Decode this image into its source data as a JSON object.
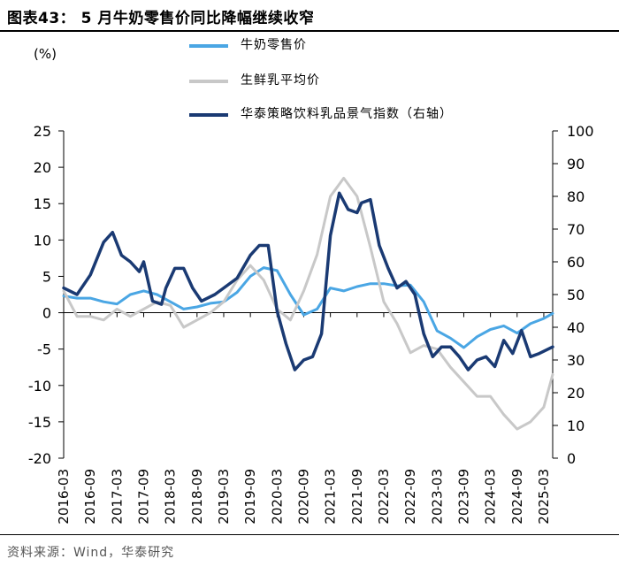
{
  "header": {
    "title": "图表43：  5 月牛奶零售价同比降幅继续收窄"
  },
  "footer": {
    "source": "资料来源：Wind，华泰研究"
  },
  "chart_data": {
    "type": "line",
    "unit_label": "(%)",
    "left_axis": {
      "min": -20,
      "max": 25,
      "ticks": [
        25,
        20,
        15,
        10,
        5,
        0,
        -5,
        -10,
        -15,
        -20
      ]
    },
    "right_axis": {
      "min": 0,
      "max": 100,
      "ticks": [
        100,
        90,
        80,
        70,
        60,
        50,
        40,
        30,
        20,
        10,
        0
      ]
    },
    "x_tick_labels": [
      "2016-03",
      "2016-09",
      "2017-03",
      "2017-09",
      "2018-03",
      "2018-09",
      "2019-03",
      "2019-09",
      "2020-03",
      "2020-09",
      "2021-03",
      "2021-09",
      "2022-03",
      "2022-09",
      "2023-03",
      "2023-09",
      "2024-03",
      "2024-09",
      "2025-03"
    ],
    "x_start": "2016-03",
    "x_end": "2025-05",
    "series": [
      {
        "name": "牛奶零售价",
        "axis": "left",
        "color": "#4aa6e4",
        "width": 3,
        "points": [
          [
            "2016-03",
            2.3
          ],
          [
            "2016-06",
            2.0
          ],
          [
            "2016-09",
            2.0
          ],
          [
            "2016-12",
            1.5
          ],
          [
            "2017-03",
            1.2
          ],
          [
            "2017-06",
            2.5
          ],
          [
            "2017-09",
            3.0
          ],
          [
            "2017-12",
            2.5
          ],
          [
            "2018-03",
            1.5
          ],
          [
            "2018-06",
            0.5
          ],
          [
            "2018-09",
            0.8
          ],
          [
            "2018-12",
            1.3
          ],
          [
            "2019-03",
            1.5
          ],
          [
            "2019-06",
            2.8
          ],
          [
            "2019-09",
            5.0
          ],
          [
            "2019-12",
            6.2
          ],
          [
            "2020-03",
            5.8
          ],
          [
            "2020-06",
            2.5
          ],
          [
            "2020-09",
            -0.3
          ],
          [
            "2020-12",
            0.5
          ],
          [
            "2021-03",
            3.4
          ],
          [
            "2021-06",
            3.0
          ],
          [
            "2021-09",
            3.6
          ],
          [
            "2021-12",
            4.0
          ],
          [
            "2022-03",
            4.0
          ],
          [
            "2022-06",
            3.7
          ],
          [
            "2022-09",
            3.8
          ],
          [
            "2022-12",
            1.5
          ],
          [
            "2023-03",
            -2.5
          ],
          [
            "2023-06",
            -3.5
          ],
          [
            "2023-09",
            -4.8
          ],
          [
            "2023-12",
            -3.3
          ],
          [
            "2024-03",
            -2.3
          ],
          [
            "2024-06",
            -1.8
          ],
          [
            "2024-09",
            -2.8
          ],
          [
            "2024-12",
            -1.5
          ],
          [
            "2025-03",
            -0.8
          ],
          [
            "2025-05",
            -0.1
          ]
        ]
      },
      {
        "name": "生鲜乳平均价",
        "axis": "left",
        "color": "#c8c8c8",
        "width": 3,
        "points": [
          [
            "2016-03",
            3.0
          ],
          [
            "2016-06",
            -0.5
          ],
          [
            "2016-09",
            -0.5
          ],
          [
            "2016-12",
            -1.0
          ],
          [
            "2017-03",
            0.5
          ],
          [
            "2017-06",
            -0.5
          ],
          [
            "2017-09",
            0.5
          ],
          [
            "2017-12",
            1.5
          ],
          [
            "2018-03",
            1.0
          ],
          [
            "2018-06",
            -2.0
          ],
          [
            "2018-09",
            -1.0
          ],
          [
            "2018-12",
            0.0
          ],
          [
            "2019-03",
            1.5
          ],
          [
            "2019-06",
            4.5
          ],
          [
            "2019-09",
            6.5
          ],
          [
            "2019-12",
            4.5
          ],
          [
            "2020-03",
            0.5
          ],
          [
            "2020-06",
            -1.0
          ],
          [
            "2020-09",
            3.0
          ],
          [
            "2020-12",
            8.0
          ],
          [
            "2021-03",
            16.0
          ],
          [
            "2021-06",
            18.5
          ],
          [
            "2021-09",
            16.0
          ],
          [
            "2021-12",
            9.0
          ],
          [
            "2022-03",
            1.5
          ],
          [
            "2022-06",
            -1.5
          ],
          [
            "2022-09",
            -5.5
          ],
          [
            "2022-12",
            -4.5
          ],
          [
            "2023-03",
            -5.0
          ],
          [
            "2023-06",
            -7.5
          ],
          [
            "2023-09",
            -9.5
          ],
          [
            "2023-12",
            -11.5
          ],
          [
            "2024-03",
            -11.5
          ],
          [
            "2024-06",
            -14.0
          ],
          [
            "2024-09",
            -16.0
          ],
          [
            "2024-12",
            -15.0
          ],
          [
            "2025-03",
            -13.0
          ],
          [
            "2025-05",
            -8.5
          ]
        ]
      },
      {
        "name": "华泰策略饮料乳品景气指数（右轴）",
        "axis": "right",
        "color": "#1a3a73",
        "width": 3.5,
        "points": [
          [
            "2016-03",
            52
          ],
          [
            "2016-06",
            50
          ],
          [
            "2016-09",
            56
          ],
          [
            "2016-12",
            66
          ],
          [
            "2017-02",
            69
          ],
          [
            "2017-04",
            62
          ],
          [
            "2017-06",
            60
          ],
          [
            "2017-08",
            57
          ],
          [
            "2017-09",
            60
          ],
          [
            "2017-11",
            48
          ],
          [
            "2018-01",
            47
          ],
          [
            "2018-02",
            52
          ],
          [
            "2018-04",
            58
          ],
          [
            "2018-06",
            58
          ],
          [
            "2018-08",
            52
          ],
          [
            "2018-10",
            48
          ],
          [
            "2019-01",
            50
          ],
          [
            "2019-03",
            52
          ],
          [
            "2019-06",
            55
          ],
          [
            "2019-09",
            62
          ],
          [
            "2019-11",
            65
          ],
          [
            "2020-01",
            65
          ],
          [
            "2020-03",
            45
          ],
          [
            "2020-05",
            35
          ],
          [
            "2020-07",
            27
          ],
          [
            "2020-09",
            30
          ],
          [
            "2020-11",
            31
          ],
          [
            "2021-01",
            38
          ],
          [
            "2021-03",
            68
          ],
          [
            "2021-05",
            81
          ],
          [
            "2021-07",
            76
          ],
          [
            "2021-09",
            75
          ],
          [
            "2021-10",
            78
          ],
          [
            "2021-12",
            79
          ],
          [
            "2022-02",
            65
          ],
          [
            "2022-04",
            58
          ],
          [
            "2022-06",
            52
          ],
          [
            "2022-08",
            54
          ],
          [
            "2022-10",
            50
          ],
          [
            "2022-12",
            38
          ],
          [
            "2023-02",
            31
          ],
          [
            "2023-04",
            34
          ],
          [
            "2023-06",
            34
          ],
          [
            "2023-08",
            31
          ],
          [
            "2023-10",
            27
          ],
          [
            "2023-12",
            30
          ],
          [
            "2024-02",
            31
          ],
          [
            "2024-04",
            28
          ],
          [
            "2024-06",
            36
          ],
          [
            "2024-08",
            32
          ],
          [
            "2024-10",
            39
          ],
          [
            "2024-12",
            31
          ],
          [
            "2025-02",
            32
          ],
          [
            "2025-05",
            34
          ]
        ]
      }
    ]
  }
}
